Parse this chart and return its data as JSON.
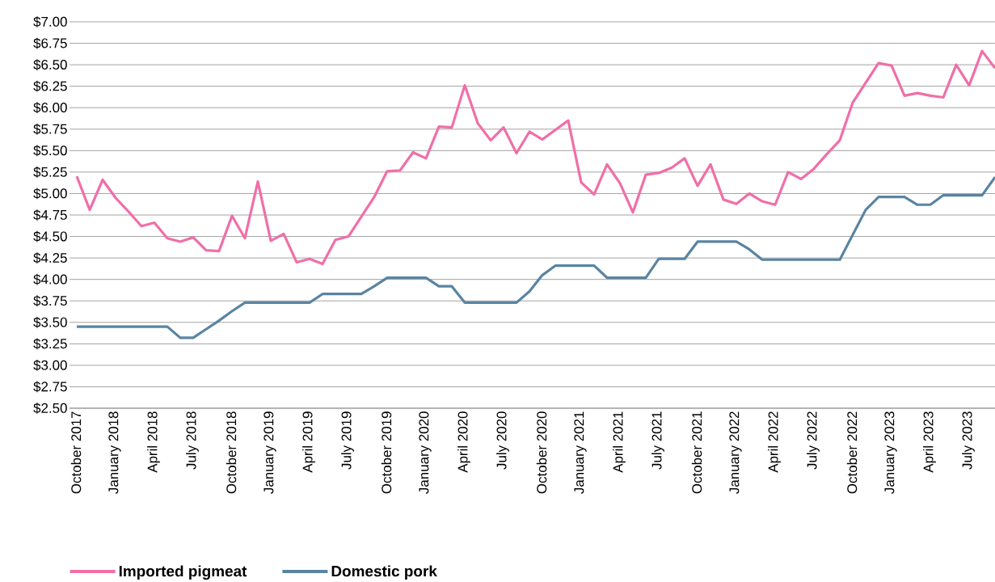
{
  "chart_data": {
    "type": "line",
    "categories": [
      "October 2017",
      null,
      null,
      "January 2018",
      null,
      null,
      "April 2018",
      null,
      null,
      "July 2018",
      null,
      null,
      "October 2018",
      null,
      null,
      "January 2019",
      null,
      null,
      "April 2019",
      null,
      null,
      "July 2019",
      null,
      null,
      "October 2019",
      null,
      null,
      "January 2020",
      null,
      null,
      "April 2020",
      null,
      null,
      "July 2020",
      null,
      null,
      "October 2020",
      null,
      null,
      "January 2021",
      null,
      null,
      "April 2021",
      null,
      null,
      "July 2021",
      null,
      null,
      "October 2021",
      null,
      null,
      "January 2022",
      null,
      null,
      "April 2022",
      null,
      null,
      "July 2022",
      null,
      null,
      "October 2022",
      null,
      null,
      "January 2023",
      null,
      null,
      "April 2023",
      null,
      null,
      "July 2023",
      null,
      null
    ],
    "series": [
      {
        "name": "Imported pigmeat",
        "color": "#f06fa8",
        "values": [
          5.2,
          4.81,
          5.16,
          4.95,
          4.79,
          4.62,
          4.66,
          4.48,
          4.44,
          4.49,
          4.34,
          4.33,
          4.74,
          4.48,
          5.14,
          4.45,
          4.53,
          4.2,
          4.24,
          4.18,
          4.46,
          4.5,
          4.73,
          4.96,
          5.26,
          5.27,
          5.48,
          5.41,
          5.78,
          5.77,
          6.26,
          5.82,
          5.62,
          5.77,
          5.47,
          5.72,
          5.63,
          5.74,
          5.85,
          5.13,
          4.99,
          5.34,
          5.12,
          4.78,
          5.22,
          5.24,
          5.3,
          5.41,
          5.09,
          5.34,
          4.93,
          4.88,
          5.0,
          4.91,
          4.87,
          5.25,
          5.17,
          5.29,
          5.46,
          5.62,
          6.06,
          6.29,
          6.52,
          6.49,
          6.14,
          6.17,
          6.14,
          6.12,
          6.5,
          6.26,
          6.66,
          6.46
        ]
      },
      {
        "name": "Domestic pork",
        "color": "#5a84a2",
        "values": [
          3.45,
          3.45,
          3.45,
          3.45,
          3.45,
          3.45,
          3.45,
          3.45,
          3.32,
          3.32,
          3.42,
          3.52,
          3.63,
          3.73,
          3.73,
          3.73,
          3.73,
          3.73,
          3.73,
          3.83,
          3.83,
          3.83,
          3.83,
          3.92,
          4.02,
          4.02,
          4.02,
          4.02,
          3.92,
          3.92,
          3.73,
          3.73,
          3.73,
          3.73,
          3.73,
          3.86,
          4.05,
          4.16,
          4.16,
          4.16,
          4.16,
          4.02,
          4.02,
          4.02,
          4.02,
          4.24,
          4.24,
          4.24,
          4.44,
          4.44,
          4.44,
          4.44,
          4.35,
          4.23,
          4.23,
          4.23,
          4.23,
          4.23,
          4.23,
          4.23,
          4.52,
          4.81,
          4.96,
          4.96,
          4.96,
          4.87,
          4.87,
          4.98,
          4.98,
          4.98,
          4.98,
          5.19
        ]
      }
    ],
    "ylim": [
      2.5,
      7.0
    ],
    "yticks": [
      {
        "value": 2.5,
        "label": "$2.50"
      },
      {
        "value": 2.75,
        "label": "$2.75"
      },
      {
        "value": 3.0,
        "label": "$3.00"
      },
      {
        "value": 3.25,
        "label": "$3.25"
      },
      {
        "value": 3.5,
        "label": "$3.50"
      },
      {
        "value": 3.75,
        "label": "$3.75"
      },
      {
        "value": 4.0,
        "label": "$4.00"
      },
      {
        "value": 4.25,
        "label": "$4.25"
      },
      {
        "value": 4.5,
        "label": "$4.50"
      },
      {
        "value": 4.75,
        "label": "$4.75"
      },
      {
        "value": 5.0,
        "label": "$5.00"
      },
      {
        "value": 5.25,
        "label": "$5.25"
      },
      {
        "value": 5.5,
        "label": "$5.50"
      },
      {
        "value": 5.75,
        "label": "$5.75"
      },
      {
        "value": 6.0,
        "label": "$6.00"
      },
      {
        "value": 6.25,
        "label": "$6.25"
      },
      {
        "value": 6.5,
        "label": "$6.50"
      },
      {
        "value": 6.75,
        "label": "$6.75"
      },
      {
        "value": 7.0,
        "label": "$7.00"
      }
    ],
    "grid": "y",
    "legend": "bottom left",
    "marker": "none",
    "line_style": "solid"
  }
}
